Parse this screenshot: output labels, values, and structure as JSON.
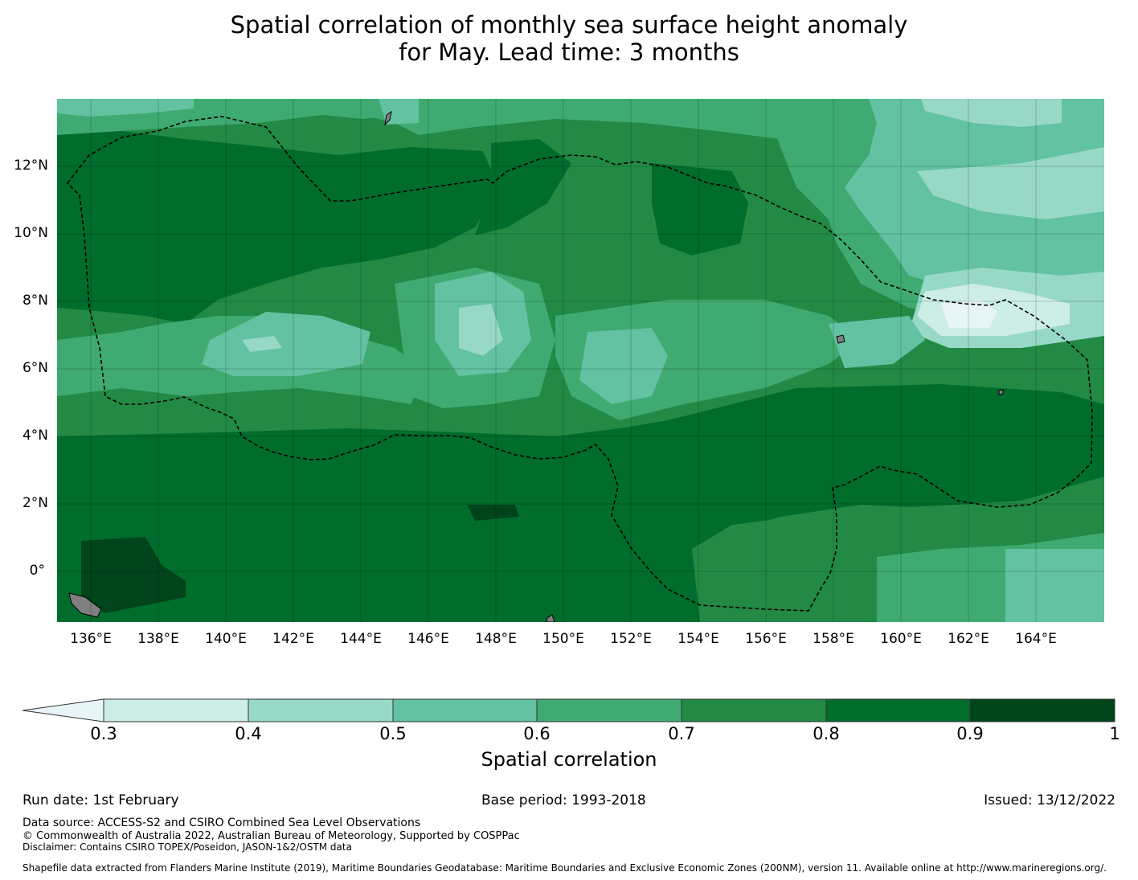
{
  "title": {
    "line1": "Spatial correlation of monthly sea surface height anomaly",
    "line2": "for May. Lead time: 3 months"
  },
  "map": {
    "lat_labels": [
      "12°N",
      "10°N",
      "8°N",
      "6°N",
      "4°N",
      "2°N",
      "0°"
    ],
    "lon_labels": [
      "136°E",
      "138°E",
      "140°E",
      "142°E",
      "144°E",
      "146°E",
      "148°E",
      "150°E",
      "152°E",
      "154°E",
      "156°E",
      "158°E",
      "160°E",
      "162°E",
      "164°E"
    ],
    "lon_range": [
      134.7,
      165.8
    ],
    "lat_range": [
      -1.5,
      14.0
    ],
    "boundary": "Federated States of Micronesia EEZ",
    "colors": {
      "c03": "#cceee6",
      "c04": "#97d8c6",
      "c05": "#62c2a2",
      "c06": "#3fab72",
      "c07": "#228a45",
      "c08": "#006d2c",
      "c09": "#00441b",
      "below": "#e8f5f8",
      "land": "#808080"
    }
  },
  "colorbar": {
    "ticks": [
      "0.3",
      "0.4",
      "0.5",
      "0.6",
      "0.7",
      "0.8",
      "0.9",
      "1"
    ],
    "label": "Spatial correlation"
  },
  "footer": {
    "run_date": "Run date: 1st February",
    "base_period": "Base period: 1993-2018",
    "issued": "Issued: 13/12/2022",
    "data_source": "Data source: ACCESS-S2 and CSIRO Combined Sea Level Observations",
    "copyright": "© Commonwealth of Australia 2022, Australian Bureau of Meteorology, Supported by COSPPac",
    "disclaimer": "Disclaimer: Contains CSIRO TOPEX/Poseidon, JASON-1&2/OSTM data",
    "shapefile": "Shapefile data extracted from Flanders Marine Institute (2019), Maritime Boundaries Geodatabase: Maritime Boundaries and Exclusive Economic Zones (200NM), version 11. Available online at http://www.marineregions.org/."
  }
}
